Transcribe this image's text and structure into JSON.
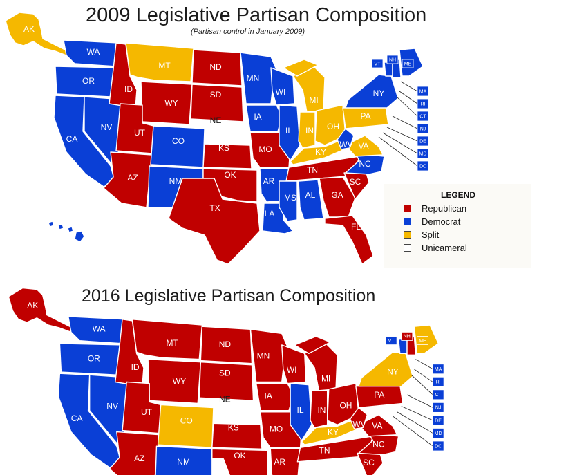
{
  "colors": {
    "republican": "#c00000",
    "democrat": "#0a3fd6",
    "split": "#f5b800",
    "unicameral": "#ffffff"
  },
  "maps": [
    {
      "title": "2009 Legislative Partisan Composition",
      "subtitle": "(Partisan control in January 2009)",
      "states": {
        "AK": "split",
        "HI": "democrat",
        "WA": "democrat",
        "OR": "democrat",
        "CA": "democrat",
        "NV": "democrat",
        "ID": "republican",
        "MT": "split",
        "WY": "republican",
        "UT": "republican",
        "AZ": "republican",
        "CO": "democrat",
        "NM": "democrat",
        "ND": "republican",
        "SD": "republican",
        "NE": "unicameral",
        "KS": "republican",
        "OK": "republican",
        "TX": "republican",
        "MN": "democrat",
        "IA": "democrat",
        "MO": "republican",
        "AR": "democrat",
        "LA": "democrat",
        "WI": "democrat",
        "IL": "democrat",
        "MI": "split",
        "IN": "split",
        "OH": "split",
        "KY": "split",
        "TN": "republican",
        "MS": "democrat",
        "AL": "democrat",
        "GA": "republican",
        "FL": "republican",
        "SC": "republican",
        "NC": "democrat",
        "VA": "split",
        "WV": "democrat",
        "PA": "split",
        "NY": "democrat",
        "VT": "democrat",
        "NH": "democrat",
        "ME": "democrat",
        "MA": "democrat",
        "RI": "democrat",
        "CT": "democrat",
        "NJ": "democrat",
        "DE": "democrat",
        "MD": "democrat",
        "DC": "democrat"
      }
    },
    {
      "title": "2016 Legislative Partisan Composition",
      "states": {
        "AK": "republican",
        "WA": "democrat",
        "OR": "democrat",
        "CA": "democrat",
        "NV": "democrat",
        "ID": "republican",
        "MT": "republican",
        "WY": "republican",
        "UT": "republican",
        "AZ": "republican",
        "CO": "split",
        "NM": "democrat",
        "ND": "republican",
        "SD": "republican",
        "NE": "unicameral",
        "KS": "republican",
        "OK": "republican",
        "MN": "republican",
        "IA": "republican",
        "MO": "republican",
        "AR": "republican",
        "WI": "republican",
        "IL": "democrat",
        "MI": "republican",
        "IN": "republican",
        "OH": "republican",
        "KY": "split",
        "TN": "republican",
        "NC": "republican",
        "SC": "republican",
        "VA": "republican",
        "WV": "republican",
        "PA": "republican",
        "NY": "split",
        "VT": "democrat",
        "NH": "republican",
        "ME": "split",
        "MA": "democrat",
        "RI": "democrat",
        "CT": "democrat",
        "NJ": "democrat",
        "DE": "democrat",
        "MD": "democrat",
        "DC": "democrat"
      }
    }
  ],
  "legend": {
    "title": "LEGEND",
    "items": [
      {
        "label": "Republican",
        "key": "republican"
      },
      {
        "label": "Democrat",
        "key": "democrat"
      },
      {
        "label": "Split",
        "key": "split"
      },
      {
        "label": "Unicameral",
        "key": "unicameral"
      }
    ]
  }
}
